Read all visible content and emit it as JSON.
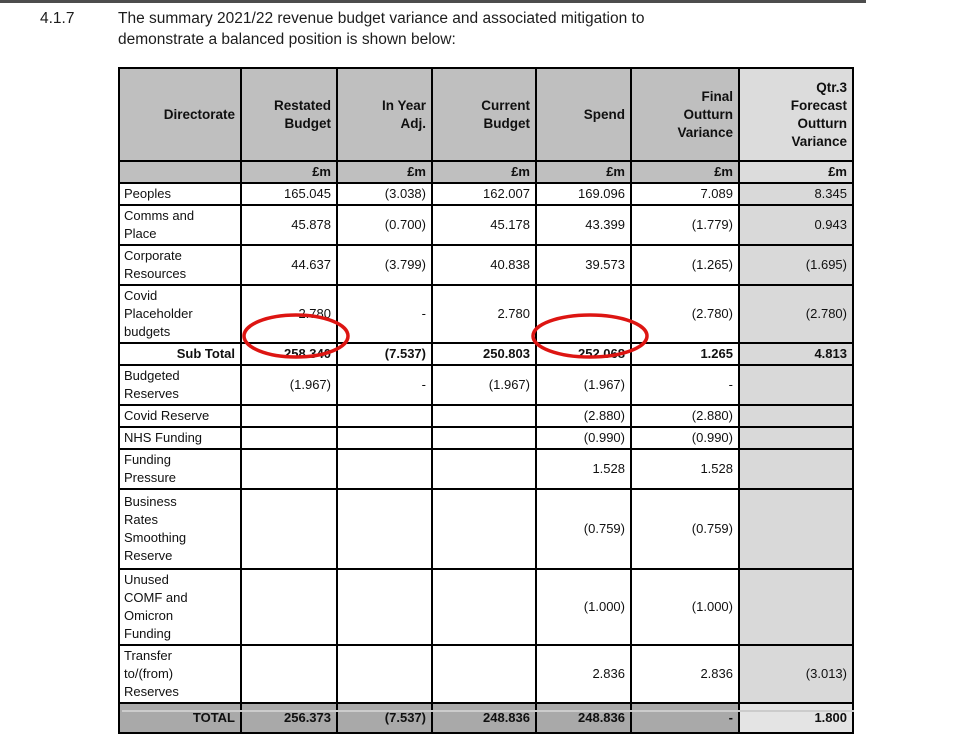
{
  "page": {
    "section_number": "4.1.7",
    "paragraph": "The summary 2021/22 revenue budget variance and associated mitigation to demonstrate a balanced position is shown below:"
  },
  "colors": {
    "header_bg": "#bfbfbf",
    "header_last_bg": "#dcdcdc",
    "lastcol_bg": "#d9d9d9",
    "total_bg": "#a9a9a9",
    "total_last_bg": "#e4e4e4",
    "annotation_red": "#dd1512",
    "top_bar": "#4d4d4d"
  },
  "table": {
    "columns": [
      "Directorate",
      "Restated\nBudget",
      "In Year\nAdj.",
      "Current\nBudget",
      "Spend",
      "Final\nOutturn\nVariance",
      "Qtr.3\nForecast\nOutturn\nVariance"
    ],
    "unit_row": [
      "",
      "£m",
      "£m",
      "£m",
      "£m",
      "£m",
      "£m"
    ],
    "rows": [
      {
        "label": "Peoples",
        "values": [
          "165.045",
          "(3.038)",
          "162.007",
          "169.096",
          "7.089",
          "8.345"
        ],
        "style": "normal"
      },
      {
        "label": "Comms and\nPlace",
        "values": [
          "45.878",
          "(0.700)",
          "45.178",
          "43.399",
          "(1.779)",
          "0.943"
        ],
        "style": "normal"
      },
      {
        "label": "Corporate\nResources",
        "values": [
          "44.637",
          "(3.799)",
          "40.838",
          "39.573",
          "(1.265)",
          "(1.695)"
        ],
        "style": "normal"
      },
      {
        "label": "Covid\nPlaceholder\nbudgets",
        "values": [
          "2.780",
          "-",
          "2.780",
          "",
          "(2.780)",
          "(2.780)"
        ],
        "style": "normal"
      },
      {
        "label": "Sub Total",
        "values": [
          "258.340",
          "(7.537)",
          "250.803",
          "252.068",
          "1.265",
          "4.813"
        ],
        "style": "subtotal"
      },
      {
        "label": "Budgeted\nReserves",
        "values": [
          "(1.967)",
          "-",
          "(1.967)",
          "(1.967)",
          "-",
          ""
        ],
        "style": "normal"
      },
      {
        "label": "Covid Reserve",
        "values": [
          "",
          "",
          "",
          "(2.880)",
          "(2.880)",
          ""
        ],
        "style": "normal"
      },
      {
        "label": "NHS Funding",
        "values": [
          "",
          "",
          "",
          "(0.990)",
          "(0.990)",
          ""
        ],
        "style": "normal"
      },
      {
        "label": "Funding\nPressure",
        "values": [
          "",
          "",
          "",
          "1.528",
          "1.528",
          ""
        ],
        "style": "normal"
      },
      {
        "label": "Business\nRates\nSmoothing\nReserve",
        "values": [
          "",
          "",
          "",
          "(0.759)",
          "(0.759)",
          ""
        ],
        "style": "normal"
      },
      {
        "label": "Unused\nCOMF and\nOmicron\nFunding",
        "values": [
          "",
          "",
          "",
          "(1.000)",
          "(1.000)",
          ""
        ],
        "style": "normal"
      },
      {
        "label": "Transfer\nto/(from)\nReserves",
        "values": [
          "",
          "",
          "",
          "2.836",
          "2.836",
          "(3.013)"
        ],
        "style": "normal"
      },
      {
        "label": "TOTAL",
        "values": [
          "256.373",
          "(7.537)",
          "248.836",
          "248.836",
          "-",
          "1.800"
        ],
        "style": "total"
      }
    ],
    "annotations": [
      {
        "shape": "ellipse",
        "target_row": "Sub Total",
        "target_column": "Restated Budget",
        "value": "258.340"
      },
      {
        "shape": "ellipse",
        "target_row": "Sub Total",
        "target_column": "Spend",
        "value": "252.068"
      }
    ]
  }
}
